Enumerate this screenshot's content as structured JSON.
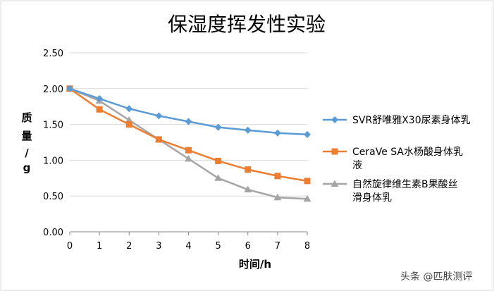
{
  "chart_data": {
    "type": "line",
    "title": "保湿度挥发性实验",
    "xlabel": "时间/h",
    "ylabel": [
      "质",
      "量",
      "/",
      "g"
    ],
    "x": [
      0,
      1,
      2,
      3,
      4,
      5,
      6,
      7,
      8
    ],
    "x_tick_labels": [
      "0",
      "1",
      "2",
      "3",
      "4",
      "5",
      "6",
      "7",
      "8"
    ],
    "ylim": [
      0,
      2.5
    ],
    "y_ticks": [
      0,
      0.5,
      1.0,
      1.5,
      2.0,
      2.5
    ],
    "y_tick_labels": [
      "0.00",
      "0.50",
      "1.00",
      "1.50",
      "2.00",
      "2.50"
    ],
    "grid": "horizontal",
    "legend_position": "right",
    "series": [
      {
        "name": "SVR舒唯雅X30尿素身体乳",
        "legend_lines": [
          "SVR舒唯雅X30尿素身体乳"
        ],
        "color": "#5b9bd5",
        "marker": "diamond",
        "values": [
          2.0,
          1.86,
          1.72,
          1.62,
          1.54,
          1.46,
          1.42,
          1.38,
          1.36
        ]
      },
      {
        "name": "CeraVe SA水杨酸身体乳液",
        "legend_lines": [
          "CeraVe SA水杨酸身体乳",
          "液"
        ],
        "color": "#ed7d31",
        "marker": "square",
        "values": [
          2.0,
          1.71,
          1.5,
          1.29,
          1.14,
          0.99,
          0.87,
          0.78,
          0.71
        ]
      },
      {
        "name": "自然旋律维生素B果酸丝滑身体乳",
        "legend_lines": [
          "自然旋律维生素B果酸丝",
          "滑身体乳"
        ],
        "color": "#a5a5a5",
        "marker": "triangle",
        "values": [
          2.0,
          1.83,
          1.56,
          1.29,
          1.02,
          0.75,
          0.59,
          0.48,
          0.46
        ]
      }
    ]
  },
  "watermark": "头条 @匹肤测评"
}
